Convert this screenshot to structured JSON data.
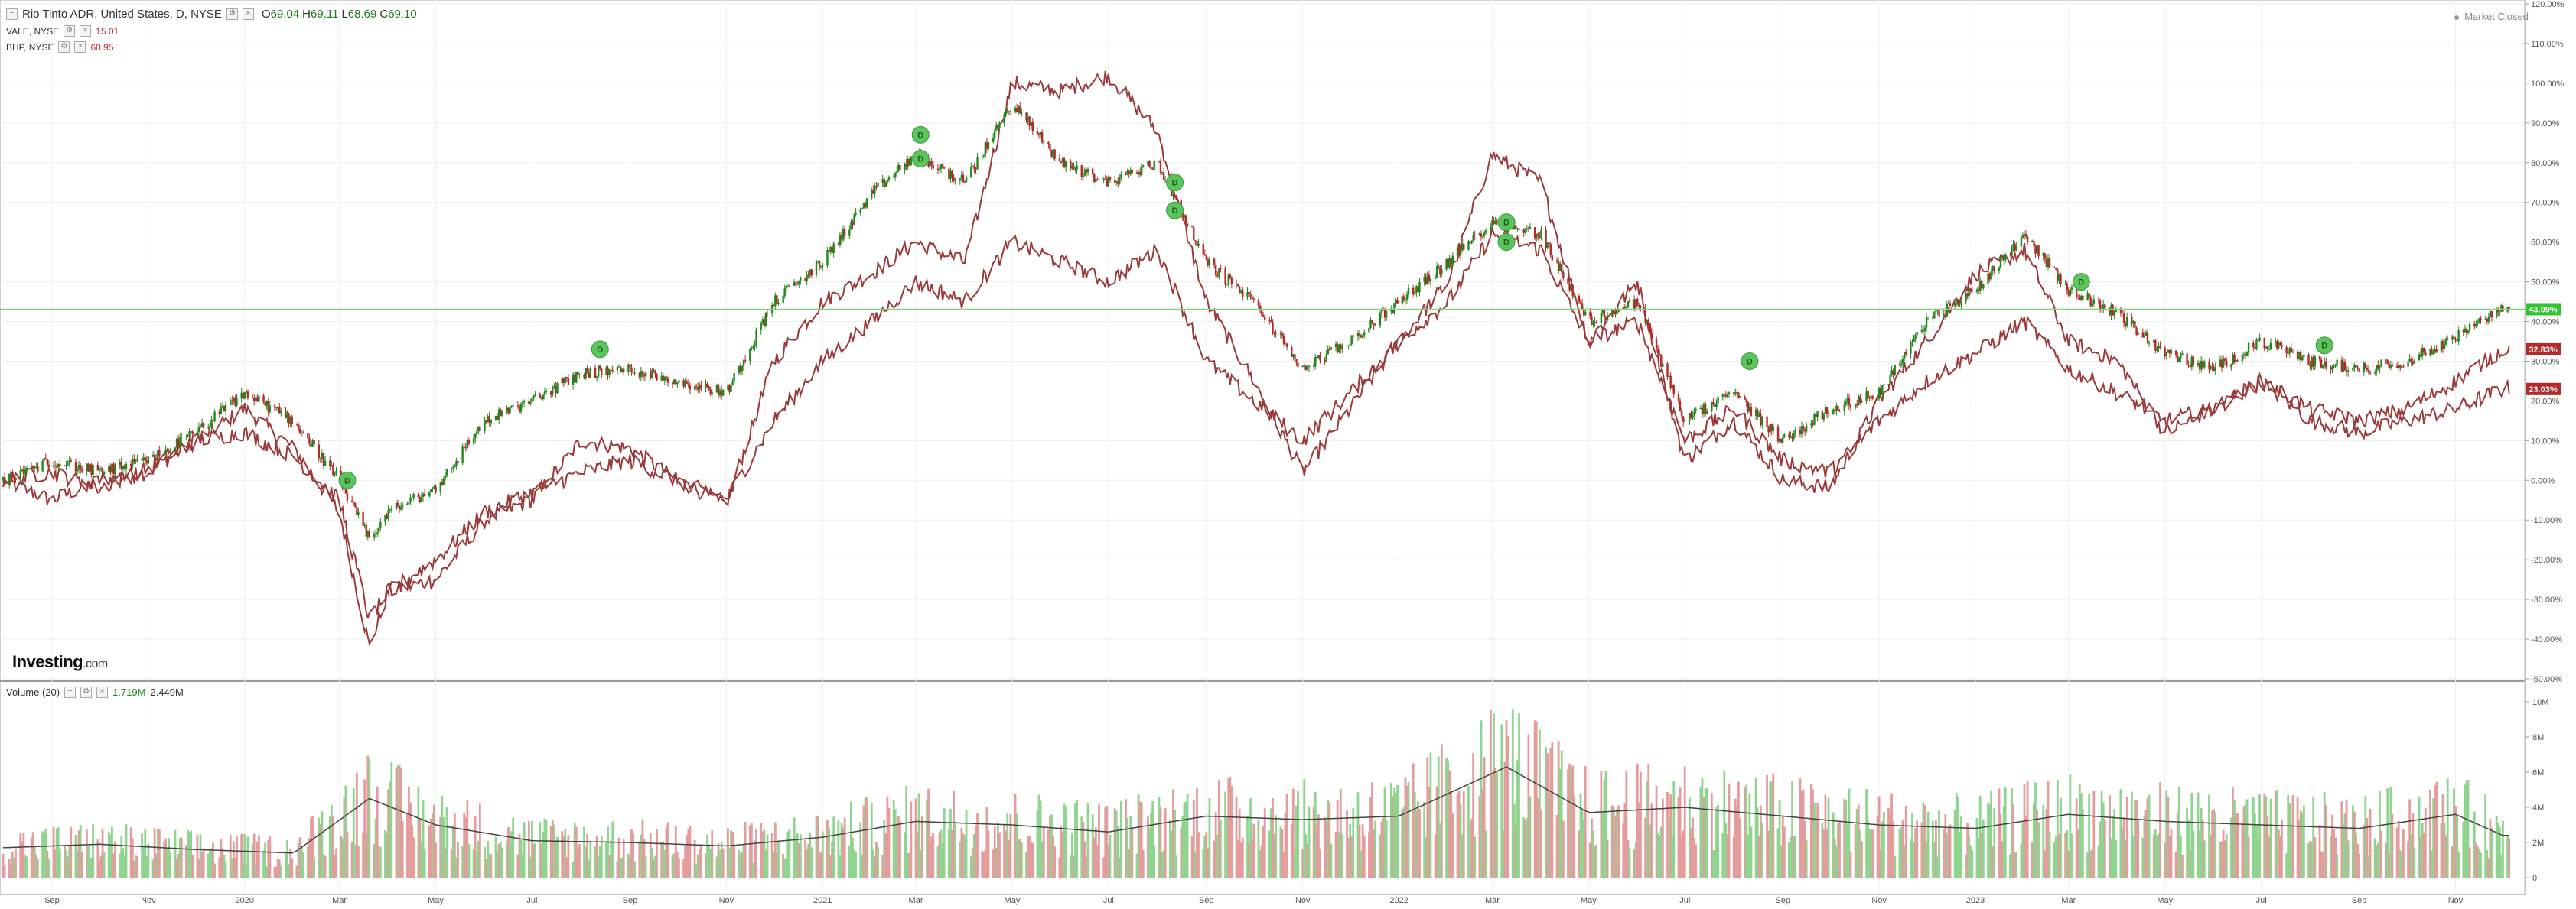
{
  "header": {
    "symbol_title": "Rio Tinto ADR, United States, D, NYSE",
    "ohlc": [
      {
        "key": "O",
        "value": "69.04"
      },
      {
        "key": "H",
        "value": "69.11"
      },
      {
        "key": "L",
        "value": "68.69"
      },
      {
        "key": "C",
        "value": "69.10"
      }
    ],
    "compare": [
      {
        "label": "VALE, NYSE",
        "value": "15.01"
      },
      {
        "label": "BHP, NYSE",
        "value": "60.95"
      }
    ],
    "market_status": "Market Closed",
    "logo_main": "Investing",
    "logo_suffix": ".com"
  },
  "volume_legend": {
    "label": "Volume (20)",
    "value_green": "1.719M",
    "value_black": "2.449M"
  },
  "colors": {
    "up": "#1f8a1f",
    "down": "#b22a2a",
    "compare_line": "#9b3a3a",
    "volume_up": "#8fd48f",
    "volume_down": "#e59c9c",
    "volume_ma": "#444444",
    "current_line": "#7fd67f",
    "badge_green": "#5cc45c"
  },
  "icons": {
    "collapse": "collapse-icon",
    "settings": "settings-icon",
    "close": "close-icon",
    "dividend": "dividend-badge-icon"
  },
  "chart_data": [
    {
      "type": "candlestick",
      "name": "Rio Tinto ADR price (% change)",
      "y_unit": "percent",
      "ylim": [
        -50,
        120
      ],
      "y_ticks": [
        "120.00%",
        "110.00%",
        "100.00%",
        "90.00%",
        "80.00%",
        "70.00%",
        "60.00%",
        "50.00%",
        "40.00%",
        "30.00%",
        "20.00%",
        "10.00%",
        "0.00%",
        "-10.00%",
        "-20.00%",
        "-30.00%",
        "-40.00%",
        "-50.00%"
      ],
      "y_tick_values": [
        120,
        110,
        100,
        90,
        80,
        70,
        60,
        50,
        40,
        30,
        20,
        10,
        0,
        -10,
        -20,
        -30,
        -40,
        -50
      ],
      "x_ticks": [
        "Sep",
        "Nov",
        "2020",
        "Mar",
        "May",
        "Jul",
        "Sep",
        "Nov",
        "2021",
        "Mar",
        "May",
        "Jul",
        "Sep",
        "Nov",
        "2022",
        "Mar",
        "May",
        "Jul",
        "Sep",
        "Nov",
        "2023",
        "Mar",
        "May",
        "Jul",
        "Sep",
        "Nov"
      ],
      "x_tick_dates": [
        "2019-09-01",
        "2019-11-01",
        "2020-01-01",
        "2020-03-01",
        "2020-05-01",
        "2020-07-01",
        "2020-09-01",
        "2020-11-01",
        "2021-01-01",
        "2021-03-01",
        "2021-05-01",
        "2021-07-01",
        "2021-09-01",
        "2021-11-01",
        "2022-01-01",
        "2022-03-01",
        "2022-05-01",
        "2022-07-01",
        "2022-09-01",
        "2022-11-01",
        "2023-01-01",
        "2023-03-01",
        "2023-05-01",
        "2023-07-01",
        "2023-09-01",
        "2023-11-01"
      ],
      "x_range": [
        "2019-08-01",
        "2023-12-10"
      ],
      "grid": true,
      "series": [
        {
          "name": "RIO",
          "style": "candles",
          "points": [
            [
              "2019-08-01",
              0
            ],
            [
              "2019-09-01",
              5
            ],
            [
              "2019-10-01",
              2
            ],
            [
              "2019-11-01",
              5
            ],
            [
              "2019-12-01",
              12
            ],
            [
              "2020-01-01",
              22
            ],
            [
              "2020-02-01",
              15
            ],
            [
              "2020-03-01",
              0
            ],
            [
              "2020-03-20",
              -15
            ],
            [
              "2020-04-01",
              -8
            ],
            [
              "2020-05-01",
              -2
            ],
            [
              "2020-06-01",
              15
            ],
            [
              "2020-07-01",
              20
            ],
            [
              "2020-08-01",
              27
            ],
            [
              "2020-09-01",
              28
            ],
            [
              "2020-10-01",
              25
            ],
            [
              "2020-11-01",
              22
            ],
            [
              "2020-12-01",
              45
            ],
            [
              "2021-01-01",
              55
            ],
            [
              "2021-02-01",
              72
            ],
            [
              "2021-03-01",
              82
            ],
            [
              "2021-04-01",
              75
            ],
            [
              "2021-05-01",
              95
            ],
            [
              "2021-06-01",
              80
            ],
            [
              "2021-07-01",
              75
            ],
            [
              "2021-08-01",
              80
            ],
            [
              "2021-09-01",
              55
            ],
            [
              "2021-10-01",
              45
            ],
            [
              "2021-11-01",
              28
            ],
            [
              "2021-12-01",
              35
            ],
            [
              "2022-01-01",
              45
            ],
            [
              "2022-02-01",
              55
            ],
            [
              "2022-03-01",
              65
            ],
            [
              "2022-04-01",
              62
            ],
            [
              "2022-05-01",
              40
            ],
            [
              "2022-06-01",
              45
            ],
            [
              "2022-07-01",
              15
            ],
            [
              "2022-08-01",
              22
            ],
            [
              "2022-09-01",
              10
            ],
            [
              "2022-10-01",
              18
            ],
            [
              "2022-11-01",
              22
            ],
            [
              "2022-12-01",
              40
            ],
            [
              "2023-01-01",
              48
            ],
            [
              "2023-02-01",
              62
            ],
            [
              "2023-03-01",
              48
            ],
            [
              "2023-04-01",
              42
            ],
            [
              "2023-05-01",
              32
            ],
            [
              "2023-06-01",
              28
            ],
            [
              "2023-07-01",
              35
            ],
            [
              "2023-08-01",
              30
            ],
            [
              "2023-09-01",
              28
            ],
            [
              "2023-10-01",
              30
            ],
            [
              "2023-11-01",
              36
            ],
            [
              "2023-12-01",
              43
            ]
          ]
        },
        {
          "name": "VALE",
          "value_label": "23.03%",
          "style": "line",
          "points": [
            [
              "2019-08-01",
              0
            ],
            [
              "2019-09-01",
              -5
            ],
            [
              "2019-10-01",
              0
            ],
            [
              "2019-11-01",
              2
            ],
            [
              "2019-12-01",
              10
            ],
            [
              "2020-01-01",
              18
            ],
            [
              "2020-02-01",
              8
            ],
            [
              "2020-03-01",
              -8
            ],
            [
              "2020-03-20",
              -42
            ],
            [
              "2020-04-01",
              -28
            ],
            [
              "2020-05-01",
              -25
            ],
            [
              "2020-06-01",
              -10
            ],
            [
              "2020-07-01",
              -5
            ],
            [
              "2020-08-01",
              10
            ],
            [
              "2020-09-01",
              8
            ],
            [
              "2020-10-01",
              0
            ],
            [
              "2020-11-01",
              -6
            ],
            [
              "2020-12-01",
              30
            ],
            [
              "2021-01-01",
              45
            ],
            [
              "2021-02-01",
              52
            ],
            [
              "2021-03-01",
              60
            ],
            [
              "2021-04-01",
              55
            ],
            [
              "2021-05-01",
              100
            ],
            [
              "2021-06-01",
              98
            ],
            [
              "2021-07-01",
              102
            ],
            [
              "2021-08-01",
              88
            ],
            [
              "2021-09-01",
              45
            ],
            [
              "2021-10-01",
              25
            ],
            [
              "2021-11-01",
              2
            ],
            [
              "2021-12-01",
              18
            ],
            [
              "2022-01-01",
              35
            ],
            [
              "2022-02-01",
              50
            ],
            [
              "2022-03-01",
              82
            ],
            [
              "2022-04-01",
              75
            ],
            [
              "2022-05-01",
              35
            ],
            [
              "2022-06-01",
              50
            ],
            [
              "2022-07-01",
              5
            ],
            [
              "2022-08-01",
              15
            ],
            [
              "2022-09-01",
              0
            ],
            [
              "2022-10-01",
              -2
            ],
            [
              "2022-11-01",
              20
            ],
            [
              "2022-12-01",
              35
            ],
            [
              "2023-01-01",
              52
            ],
            [
              "2023-02-01",
              58
            ],
            [
              "2023-03-01",
              35
            ],
            [
              "2023-04-01",
              30
            ],
            [
              "2023-05-01",
              12
            ],
            [
              "2023-06-01",
              18
            ],
            [
              "2023-07-01",
              25
            ],
            [
              "2023-08-01",
              15
            ],
            [
              "2023-09-01",
              12
            ],
            [
              "2023-10-01",
              15
            ],
            [
              "2023-11-01",
              18
            ],
            [
              "2023-12-01",
              23
            ]
          ]
        },
        {
          "name": "BHP",
          "value_label": "32.83%",
          "style": "line",
          "points": [
            [
              "2019-08-01",
              0
            ],
            [
              "2019-09-01",
              2
            ],
            [
              "2019-10-01",
              -2
            ],
            [
              "2019-11-01",
              3
            ],
            [
              "2019-12-01",
              10
            ],
            [
              "2020-01-01",
              12
            ],
            [
              "2020-02-01",
              6
            ],
            [
              "2020-03-01",
              -5
            ],
            [
              "2020-03-20",
              -35
            ],
            [
              "2020-04-01",
              -28
            ],
            [
              "2020-05-01",
              -20
            ],
            [
              "2020-06-01",
              -8
            ],
            [
              "2020-07-01",
              -3
            ],
            [
              "2020-08-01",
              2
            ],
            [
              "2020-09-01",
              5
            ],
            [
              "2020-10-01",
              0
            ],
            [
              "2020-11-01",
              -5
            ],
            [
              "2020-12-01",
              15
            ],
            [
              "2021-01-01",
              30
            ],
            [
              "2021-02-01",
              40
            ],
            [
              "2021-03-01",
              50
            ],
            [
              "2021-04-01",
              45
            ],
            [
              "2021-05-01",
              60
            ],
            [
              "2021-06-01",
              55
            ],
            [
              "2021-07-01",
              50
            ],
            [
              "2021-08-01",
              58
            ],
            [
              "2021-09-01",
              30
            ],
            [
              "2021-10-01",
              20
            ],
            [
              "2021-11-01",
              10
            ],
            [
              "2021-12-01",
              22
            ],
            [
              "2022-01-01",
              35
            ],
            [
              "2022-02-01",
              45
            ],
            [
              "2022-03-01",
              62
            ],
            [
              "2022-04-01",
              58
            ],
            [
              "2022-05-01",
              35
            ],
            [
              "2022-06-01",
              40
            ],
            [
              "2022-07-01",
              10
            ],
            [
              "2022-08-01",
              18
            ],
            [
              "2022-09-01",
              5
            ],
            [
              "2022-10-01",
              2
            ],
            [
              "2022-11-01",
              15
            ],
            [
              "2022-12-01",
              25
            ],
            [
              "2023-01-01",
              32
            ],
            [
              "2023-02-01",
              40
            ],
            [
              "2023-03-01",
              28
            ],
            [
              "2023-04-01",
              22
            ],
            [
              "2023-05-01",
              15
            ],
            [
              "2023-06-01",
              18
            ],
            [
              "2023-07-01",
              25
            ],
            [
              "2023-08-01",
              18
            ],
            [
              "2023-09-01",
              15
            ],
            [
              "2023-10-01",
              18
            ],
            [
              "2023-11-01",
              25
            ],
            [
              "2023-12-01",
              33
            ]
          ]
        }
      ],
      "current_value_label": "43.09%",
      "current_value": 43.09,
      "dividend_markers": [
        {
          "date": "2020-03-06",
          "value": 0
        },
        {
          "date": "2020-08-13",
          "value": 33
        },
        {
          "date": "2021-03-04",
          "value": 87
        },
        {
          "date": "2021-03-04",
          "value": 81
        },
        {
          "date": "2021-08-12",
          "value": 75
        },
        {
          "date": "2021-08-12",
          "value": 68
        },
        {
          "date": "2022-03-10",
          "value": 65
        },
        {
          "date": "2022-03-10",
          "value": 60
        },
        {
          "date": "2022-08-11",
          "value": 30
        },
        {
          "date": "2023-03-09",
          "value": 50
        },
        {
          "date": "2023-08-10",
          "value": 34
        }
      ],
      "dividend_label": "D"
    },
    {
      "type": "bar",
      "name": "Volume (20)",
      "y_unit": "shares",
      "ylim": [
        0,
        11000000
      ],
      "y_ticks": [
        "10M",
        "8M",
        "6M",
        "4M",
        "2M",
        "0"
      ],
      "y_tick_values": [
        10000000,
        8000000,
        6000000,
        4000000,
        2000000,
        0
      ],
      "volume_ma_points": [
        [
          "2019-08-01",
          1.7
        ],
        [
          "2019-10-01",
          1.9
        ],
        [
          "2019-12-01",
          1.6
        ],
        [
          "2020-02-01",
          1.4
        ],
        [
          "2020-03-20",
          4.5
        ],
        [
          "2020-05-01",
          3.0
        ],
        [
          "2020-07-01",
          2.1
        ],
        [
          "2020-09-01",
          2.0
        ],
        [
          "2020-11-01",
          1.8
        ],
        [
          "2021-01-01",
          2.3
        ],
        [
          "2021-03-01",
          3.2
        ],
        [
          "2021-05-01",
          3.0
        ],
        [
          "2021-07-01",
          2.6
        ],
        [
          "2021-09-01",
          3.5
        ],
        [
          "2021-11-01",
          3.3
        ],
        [
          "2022-01-01",
          3.5
        ],
        [
          "2022-03-10",
          6.3
        ],
        [
          "2022-05-01",
          3.7
        ],
        [
          "2022-07-01",
          4.0
        ],
        [
          "2022-09-01",
          3.5
        ],
        [
          "2022-11-01",
          3.0
        ],
        [
          "2023-01-01",
          2.8
        ],
        [
          "2023-03-01",
          3.6
        ],
        [
          "2023-05-01",
          3.2
        ],
        [
          "2023-07-01",
          3.0
        ],
        [
          "2023-09-01",
          2.8
        ],
        [
          "2023-11-01",
          3.6
        ],
        [
          "2023-12-01",
          2.4
        ]
      ]
    }
  ]
}
